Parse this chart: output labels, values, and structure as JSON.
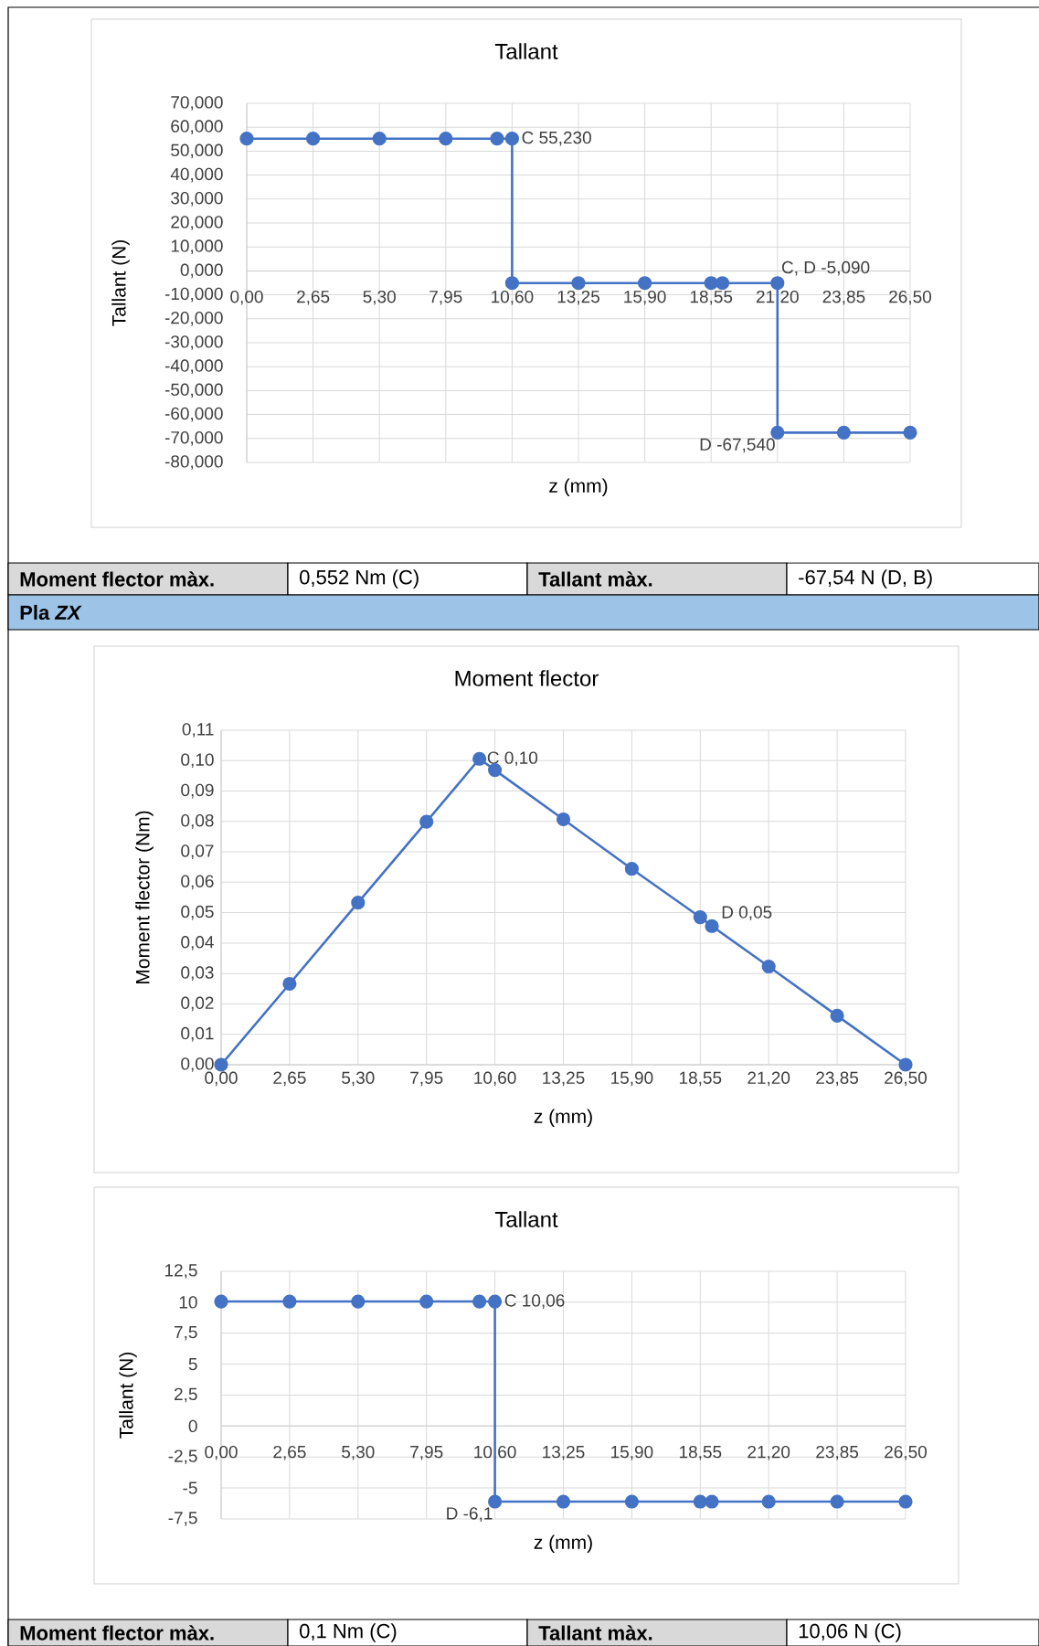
{
  "chart_data": [
    {
      "type": "line",
      "title": "Tallant",
      "xlabel": "z (mm)",
      "ylabel": "Tallant (N)",
      "color": "#4472c4",
      "marker": "circle",
      "line_style": "solid",
      "grid": true,
      "x": [
        0,
        2.65,
        5.3,
        7.95,
        10.0,
        10.6,
        10.6,
        13.25,
        15.9,
        18.55,
        19.0,
        21.2,
        21.2,
        23.85,
        26.5
      ],
      "values": [
        55.23,
        55.23,
        55.23,
        55.23,
        55.23,
        55.23,
        -5.09,
        -5.09,
        -5.09,
        -5.09,
        -5.09,
        -5.09,
        -67.54,
        -67.54,
        -67.54
      ],
      "xlim": [
        0,
        26.5
      ],
      "ylim": [
        -80,
        70
      ],
      "xticks": [
        {
          "value": 0,
          "label": "0,00"
        },
        {
          "value": 2.65,
          "label": "2,65"
        },
        {
          "value": 5.3,
          "label": "5,30"
        },
        {
          "value": 7.95,
          "label": "7,95"
        },
        {
          "value": 10.6,
          "label": "10,60"
        },
        {
          "value": 13.25,
          "label": "13,25"
        },
        {
          "value": 15.9,
          "label": "15,90"
        },
        {
          "value": 18.55,
          "label": "18,55"
        },
        {
          "value": 21.2,
          "label": "21,20"
        },
        {
          "value": 23.85,
          "label": "23,85"
        },
        {
          "value": 26.5,
          "label": "26,50"
        }
      ],
      "yticks": [
        {
          "value": -80,
          "label": "-80,000"
        },
        {
          "value": -70,
          "label": "-70,000"
        },
        {
          "value": -60,
          "label": "-60,000"
        },
        {
          "value": -50,
          "label": "-50,000"
        },
        {
          "value": -40,
          "label": "-40,000"
        },
        {
          "value": -30,
          "label": "-30,000"
        },
        {
          "value": -20,
          "label": "-20,000"
        },
        {
          "value": -10,
          "label": "-10,000"
        },
        {
          "value": 0,
          "label": "0,000"
        },
        {
          "value": 10,
          "label": "10,000"
        },
        {
          "value": 20,
          "label": "20,000"
        },
        {
          "value": 30,
          "label": "30,000"
        },
        {
          "value": 40,
          "label": "40,000"
        },
        {
          "value": 50,
          "label": "50,000"
        },
        {
          "value": 60,
          "label": "60,000"
        },
        {
          "value": 70,
          "label": "70,000"
        }
      ],
      "annotations": [
        {
          "text": "C 55,230",
          "x": 10.6,
          "y": 55.23
        },
        {
          "text": "C, D -5,090",
          "x": 21.2,
          "y": -5.09
        },
        {
          "text": "D -67,540",
          "x": 21.2,
          "y": -67.54
        }
      ]
    },
    {
      "type": "other",
      "annotations": [
        "Moment flector màx.",
        "0,552 Nm (C)",
        "Tallant màx.",
        "-67,54 N (D, B)",
        "Pla *ZX*"
      ]
    },
    {
      "type": "line",
      "title": "Moment flector",
      "xlabel": "z (mm)",
      "ylabel": "Moment flector (Nm)",
      "color": "#4472c4",
      "marker": "circle",
      "line_style": "solid",
      "grid": true,
      "x": [
        0,
        2.65,
        5.3,
        7.95,
        10.0,
        10.6,
        13.25,
        15.9,
        18.55,
        19.0,
        21.2,
        23.85,
        26.5
      ],
      "values": [
        0,
        0.0266,
        0.0533,
        0.0799,
        0.1006,
        0.0969,
        0.0807,
        0.0644,
        0.0485,
        0.0456,
        0.0323,
        0.0161,
        0
      ],
      "xlim": [
        0,
        26.5
      ],
      "ylim": [
        0,
        0.11
      ],
      "xticks": [
        {
          "value": 0,
          "label": "0,00"
        },
        {
          "value": 2.65,
          "label": "2,65"
        },
        {
          "value": 5.3,
          "label": "5,30"
        },
        {
          "value": 7.95,
          "label": "7,95"
        },
        {
          "value": 10.6,
          "label": "10,60"
        },
        {
          "value": 13.25,
          "label": "13,25"
        },
        {
          "value": 15.9,
          "label": "15,90"
        },
        {
          "value": 18.55,
          "label": "18,55"
        },
        {
          "value": 21.2,
          "label": "21,20"
        },
        {
          "value": 23.85,
          "label": "23,85"
        },
        {
          "value": 26.5,
          "label": "26,50"
        }
      ],
      "yticks": [
        {
          "value": 0,
          "label": "0,00"
        },
        {
          "value": 0.01,
          "label": "0,01"
        },
        {
          "value": 0.02,
          "label": "0,02"
        },
        {
          "value": 0.03,
          "label": "0,03"
        },
        {
          "value": 0.04,
          "label": "0,04"
        },
        {
          "value": 0.05,
          "label": "0,05"
        },
        {
          "value": 0.06,
          "label": "0,06"
        },
        {
          "value": 0.07,
          "label": "0,07"
        },
        {
          "value": 0.08,
          "label": "0,08"
        },
        {
          "value": 0.09,
          "label": "0,09"
        },
        {
          "value": 0.1,
          "label": "0,10"
        },
        {
          "value": 0.11,
          "label": "0,11"
        }
      ],
      "annotations": [
        {
          "text": "C 0,10",
          "x": 10.0,
          "y": 0.1006
        },
        {
          "text": "D 0,05",
          "x": 19.0,
          "y": 0.0456
        }
      ]
    },
    {
      "type": "line",
      "title": "Tallant",
      "xlabel": "z (mm)",
      "ylabel": "Tallant (N)",
      "color": "#4472c4",
      "marker": "circle",
      "line_style": "solid",
      "grid": true,
      "x": [
        0,
        2.65,
        5.3,
        7.95,
        10.0,
        10.6,
        10.6,
        13.25,
        15.9,
        18.55,
        19.0,
        21.2,
        23.85,
        26.5
      ],
      "values": [
        10.06,
        10.06,
        10.06,
        10.06,
        10.06,
        10.06,
        -6.1,
        -6.1,
        -6.1,
        -6.1,
        -6.1,
        -6.1,
        -6.1,
        -6.1
      ],
      "xlim": [
        0,
        26.5
      ],
      "ylim": [
        -7.5,
        12.5
      ],
      "xticks": [
        {
          "value": 0,
          "label": "0,00"
        },
        {
          "value": 2.65,
          "label": "2,65"
        },
        {
          "value": 5.3,
          "label": "5,30"
        },
        {
          "value": 7.95,
          "label": "7,95"
        },
        {
          "value": 10.6,
          "label": "10,60"
        },
        {
          "value": 13.25,
          "label": "13,25"
        },
        {
          "value": 15.9,
          "label": "15,90"
        },
        {
          "value": 18.55,
          "label": "18,55"
        },
        {
          "value": 21.2,
          "label": "21,20"
        },
        {
          "value": 23.85,
          "label": "23,85"
        },
        {
          "value": 26.5,
          "label": "26,50"
        }
      ],
      "yticks": [
        {
          "value": -7.5,
          "label": "-7,5"
        },
        -5,
        {
          "value": -2.5,
          "label": "-2,5"
        },
        0,
        {
          "value": 2.5,
          "label": "2,5"
        },
        5,
        {
          "value": 7.5,
          "label": "7,5"
        },
        10,
        {
          "value": 12.5,
          "label": "12,5"
        }
      ],
      "annotations": [
        {
          "text": "C 10,06",
          "x": 10.6,
          "y": 10.06
        },
        {
          "text": "D -6,1",
          "x": 10.6,
          "y": -6.1
        }
      ]
    },
    {
      "type": "other",
      "annotations": [
        "Moment flector màx.",
        "0,1 Nm (C)",
        "Tallant màx.",
        "10,06 N (C)"
      ]
    }
  ]
}
